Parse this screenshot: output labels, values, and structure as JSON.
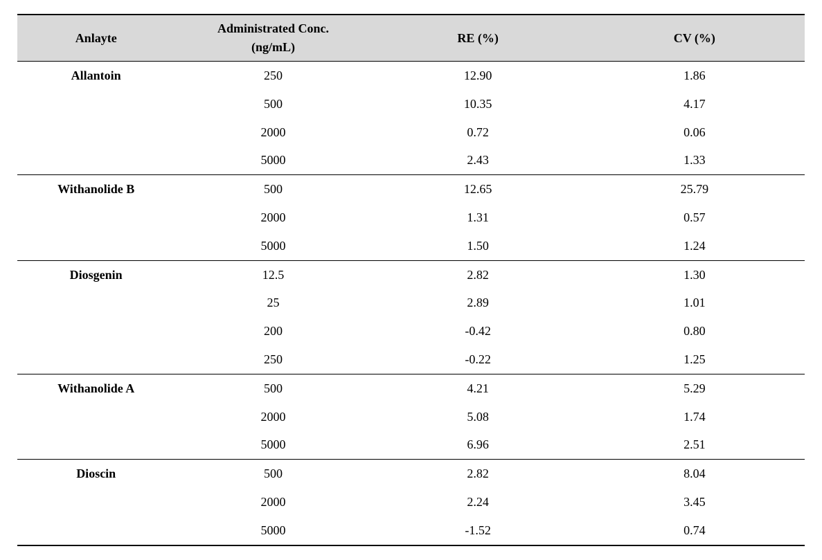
{
  "headers": {
    "analyte": "Anlayte",
    "conc_line1": "Administrated Conc.",
    "conc_line2": "(ng/mL)",
    "re": "RE (%)",
    "cv": "CV (%)"
  },
  "rows": [
    {
      "analyte": "Allantoin",
      "conc": "250",
      "re": "12.90",
      "cv": "1.86"
    },
    {
      "analyte": "",
      "conc": "500",
      "re": "10.35",
      "cv": "4.17"
    },
    {
      "analyte": "",
      "conc": "2000",
      "re": "0.72",
      "cv": "0.06"
    },
    {
      "analyte": "",
      "conc": "5000",
      "re": "2.43",
      "cv": "1.33"
    },
    {
      "analyte": "Withanolide B",
      "conc": "500",
      "re": "12.65",
      "cv": "25.79"
    },
    {
      "analyte": "",
      "conc": "2000",
      "re": "1.31",
      "cv": "0.57"
    },
    {
      "analyte": "",
      "conc": "5000",
      "re": "1.50",
      "cv": "1.24"
    },
    {
      "analyte": "Diosgenin",
      "conc": "12.5",
      "re": "2.82",
      "cv": "1.30"
    },
    {
      "analyte": "",
      "conc": "25",
      "re": "2.89",
      "cv": "1.01"
    },
    {
      "analyte": "",
      "conc": "200",
      "re": "-0.42",
      "cv": "0.80"
    },
    {
      "analyte": "",
      "conc": "250",
      "re": "-0.22",
      "cv": "1.25"
    },
    {
      "analyte": "Withanolide A",
      "conc": "500",
      "re": "4.21",
      "cv": "5.29"
    },
    {
      "analyte": "",
      "conc": "2000",
      "re": "5.08",
      "cv": "1.74"
    },
    {
      "analyte": "",
      "conc": "5000",
      "re": "6.96",
      "cv": "2.51"
    },
    {
      "analyte": "Dioscin",
      "conc": "500",
      "re": "2.82",
      "cv": "8.04"
    },
    {
      "analyte": "",
      "conc": "2000",
      "re": "2.24",
      "cv": "3.45"
    },
    {
      "analyte": "",
      "conc": "5000",
      "re": "-1.52",
      "cv": "0.74"
    }
  ]
}
